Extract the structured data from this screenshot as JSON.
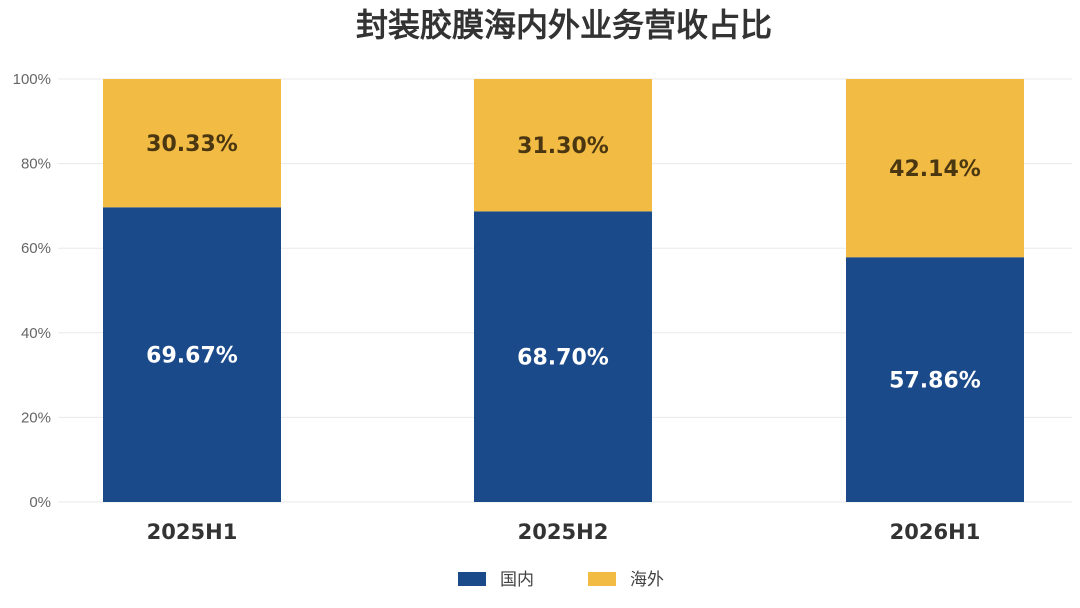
{
  "chart_data": {
    "type": "bar",
    "stacked": true,
    "title": "封装胶膜海内外业务营收占比",
    "categories": [
      "2025H1",
      "2025H2",
      "2026H1"
    ],
    "series": [
      {
        "name": "国内",
        "color": "#1a4a8a",
        "values": [
          69.67,
          68.7,
          57.86
        ],
        "labels": [
          "69.67%",
          "68.70%",
          "57.86%"
        ]
      },
      {
        "name": "海外",
        "color": "#f2bb44",
        "values": [
          30.33,
          31.3,
          42.14
        ],
        "labels": [
          "30.33%",
          "31.30%",
          "42.14%"
        ]
      }
    ],
    "ylim": [
      0,
      100
    ],
    "yticks": [
      "0%",
      "20%",
      "40%",
      "60%",
      "80%",
      "100%"
    ],
    "grid": true,
    "legend": "bottom-center"
  }
}
